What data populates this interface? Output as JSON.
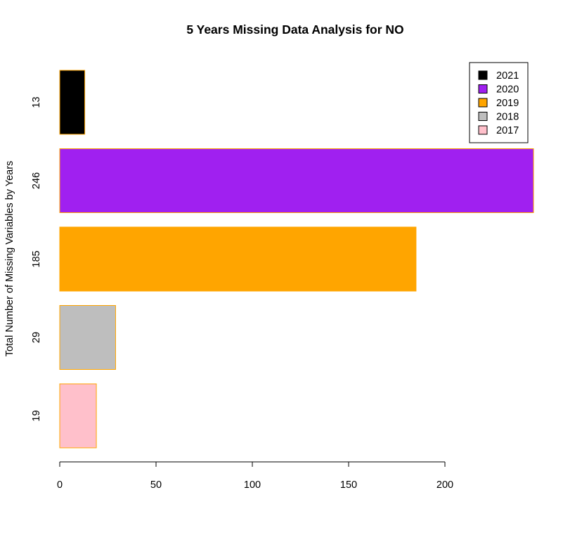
{
  "chart_data": {
    "type": "bar",
    "orientation": "horizontal",
    "title": "5 Years Missing Data Analysis for NO",
    "xlabel": "",
    "ylabel": "Total Number of Missing Variables by Years",
    "xlim": [
      0,
      246
    ],
    "x_ticks": [
      "0",
      "50",
      "100",
      "150",
      "200"
    ],
    "bar_border_color": "#FFA500",
    "grid": false,
    "legend_position": "top-right",
    "bars": [
      {
        "category": "13",
        "year": "2021",
        "value": 13,
        "color": "#000000"
      },
      {
        "category": "246",
        "year": "2020",
        "value": 246,
        "color": "#A020F0"
      },
      {
        "category": "185",
        "year": "2019",
        "value": 185,
        "color": "#FFA500"
      },
      {
        "category": "29",
        "year": "2018",
        "value": 29,
        "color": "#BEBEBE"
      },
      {
        "category": "19",
        "year": "2017",
        "value": 19,
        "color": "#FFC0CB"
      }
    ],
    "legend": [
      {
        "label": "2021",
        "color": "#000000"
      },
      {
        "label": "2020",
        "color": "#A020F0"
      },
      {
        "label": "2019",
        "color": "#FFA500"
      },
      {
        "label": "2018",
        "color": "#BEBEBE"
      },
      {
        "label": "2017",
        "color": "#FFC0CB"
      }
    ]
  }
}
